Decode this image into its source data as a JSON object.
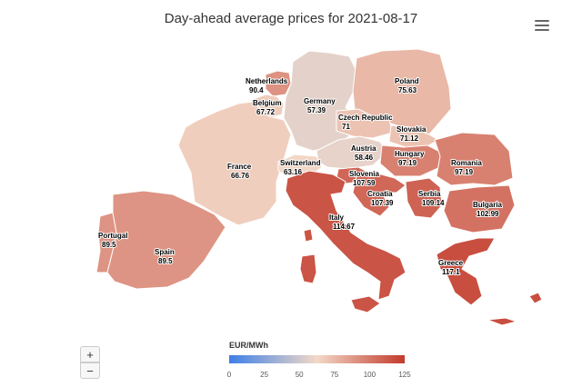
{
  "title": "Day-ahead average prices for 2021-08-17",
  "menu_icon": "hamburger-menu-icon",
  "zoom": {
    "in_label": "+",
    "out_label": "−"
  },
  "legend": {
    "title": "EUR/MWh",
    "min": 0,
    "max": 125,
    "ticks": [
      "0",
      "25",
      "50",
      "75",
      "100",
      "125"
    ],
    "colors": [
      "#3d7fe6",
      "#f3d9c8",
      "#c23a2b"
    ]
  },
  "countries": [
    {
      "name": "Netherlands",
      "price": "90.4"
    },
    {
      "name": "Belgium",
      "price": "67.72"
    },
    {
      "name": "Germany",
      "price": "57.39"
    },
    {
      "name": "Poland",
      "price": "75.63"
    },
    {
      "name": "Czech Republic",
      "price": "71"
    },
    {
      "name": "Slovakia",
      "price": "71.12"
    },
    {
      "name": "France",
      "price": "66.76"
    },
    {
      "name": "Switzerland",
      "price": "63.16"
    },
    {
      "name": "Austria",
      "price": "58.46"
    },
    {
      "name": "Hungary",
      "price": "97.19"
    },
    {
      "name": "Romania",
      "price": "97.19"
    },
    {
      "name": "Slovenia",
      "price": "107.59"
    },
    {
      "name": "Croatia",
      "price": "107.39"
    },
    {
      "name": "Serbia",
      "price": "109.14"
    },
    {
      "name": "Bulgaria",
      "price": "102.99"
    },
    {
      "name": "Italy",
      "price": "114.67"
    },
    {
      "name": "Portugal",
      "price": "89.5"
    },
    {
      "name": "Spain",
      "price": "89.5"
    },
    {
      "name": "Greece",
      "price": "117.1"
    }
  ]
}
